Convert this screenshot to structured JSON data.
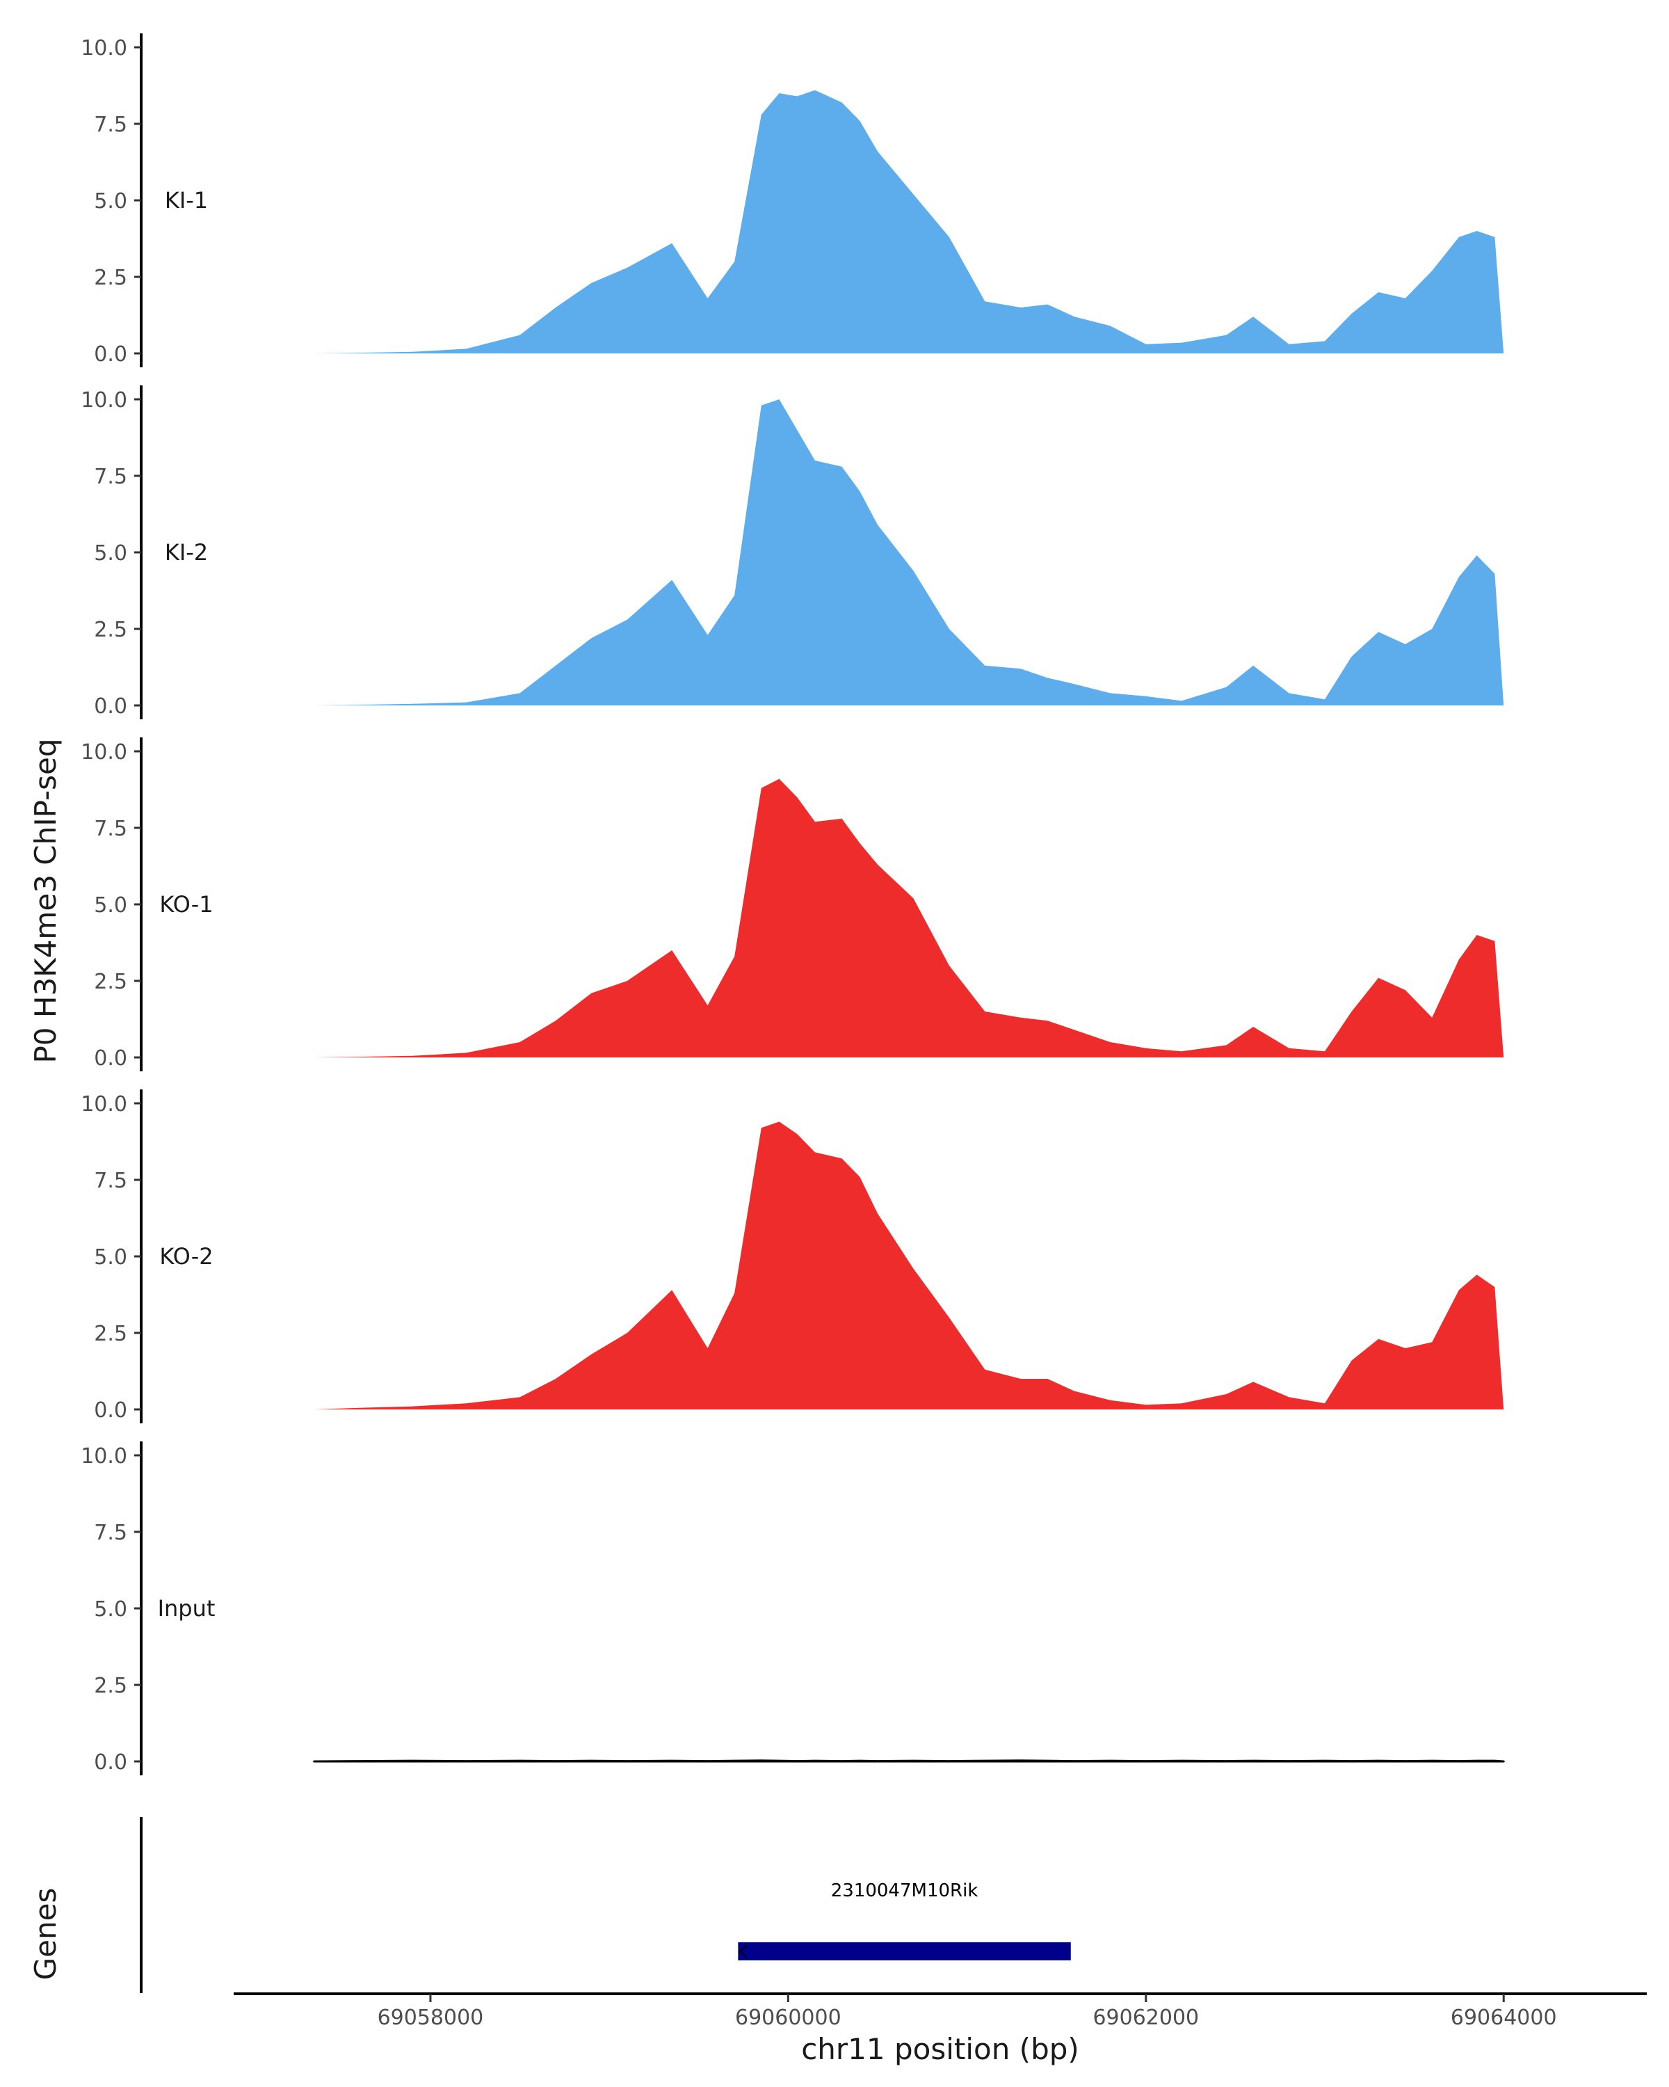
{
  "chart_data": {
    "type": "area",
    "title": "",
    "ylabel": "P0 H3K4me3 ChIP-seq",
    "xlabel": "chr11 position (bp)",
    "genes_label": "Genes",
    "xlim": [
      69056900,
      69064800
    ],
    "ylim": [
      0,
      10
    ],
    "y_ticks": [
      "0.0",
      "2.5",
      "5.0",
      "7.5",
      "10.0"
    ],
    "x_ticks": [
      {
        "value": 69058000,
        "label": "69058000"
      },
      {
        "value": 69060000,
        "label": "69060000"
      },
      {
        "value": 69062000,
        "label": "69062000"
      },
      {
        "value": 69064000,
        "label": "69064000"
      }
    ],
    "x": [
      69057350,
      69057600,
      69057900,
      69058200,
      69058500,
      69058700,
      69058900,
      69059100,
      69059350,
      69059550,
      69059700,
      69059850,
      69059950,
      69060050,
      69060150,
      69060300,
      69060400,
      69060500,
      69060700,
      69060900,
      69061100,
      69061300,
      69061450,
      69061600,
      69061800,
      69062000,
      69062200,
      69062450,
      69062600,
      69062800,
      69063000,
      69063150,
      69063300,
      69063450,
      69063600,
      69063750,
      69063850,
      69063950,
      69064000
    ],
    "series": [
      {
        "name": "KI-1",
        "color": "#5DADEC",
        "values": [
          0.0,
          0.02,
          0.05,
          0.15,
          0.6,
          1.5,
          2.3,
          2.8,
          3.6,
          1.8,
          3.0,
          7.8,
          8.5,
          8.4,
          8.6,
          8.2,
          7.6,
          6.6,
          5.2,
          3.8,
          1.7,
          1.5,
          1.6,
          1.2,
          0.9,
          0.3,
          0.35,
          0.6,
          1.2,
          0.3,
          0.4,
          1.3,
          2.0,
          1.8,
          2.7,
          3.8,
          4.0,
          3.8,
          0.0
        ]
      },
      {
        "name": "KI-2",
        "color": "#5DADEC",
        "values": [
          0.0,
          0.02,
          0.05,
          0.1,
          0.4,
          1.3,
          2.2,
          2.8,
          4.1,
          2.3,
          3.6,
          9.8,
          10.0,
          9.0,
          8.0,
          7.8,
          7.0,
          5.9,
          4.4,
          2.5,
          1.3,
          1.2,
          0.9,
          0.7,
          0.4,
          0.3,
          0.15,
          0.6,
          1.3,
          0.4,
          0.2,
          1.6,
          2.4,
          2.0,
          2.5,
          4.2,
          4.9,
          4.3,
          0.0
        ]
      },
      {
        "name": "KO-1",
        "color": "#EE2C2C",
        "values": [
          0.0,
          0.02,
          0.05,
          0.15,
          0.5,
          1.2,
          2.1,
          2.5,
          3.5,
          1.7,
          3.3,
          8.8,
          9.1,
          8.5,
          7.7,
          7.8,
          7.0,
          6.3,
          5.2,
          3.0,
          1.5,
          1.3,
          1.2,
          0.9,
          0.5,
          0.3,
          0.2,
          0.4,
          1.0,
          0.3,
          0.2,
          1.5,
          2.6,
          2.2,
          1.3,
          3.2,
          4.0,
          3.8,
          0.0
        ]
      },
      {
        "name": "KO-2",
        "color": "#EE2C2C",
        "values": [
          0.0,
          0.05,
          0.1,
          0.2,
          0.4,
          1.0,
          1.8,
          2.5,
          3.9,
          2.0,
          3.8,
          9.2,
          9.4,
          9.0,
          8.4,
          8.2,
          7.6,
          6.4,
          4.6,
          3.0,
          1.3,
          1.0,
          1.0,
          0.6,
          0.3,
          0.15,
          0.2,
          0.5,
          0.9,
          0.4,
          0.2,
          1.6,
          2.3,
          2.0,
          2.2,
          3.9,
          4.4,
          4.0,
          0.0
        ]
      },
      {
        "name": "Input",
        "color": "#000000",
        "values": [
          0.0,
          0.01,
          0.02,
          0.01,
          0.02,
          0.01,
          0.02,
          0.01,
          0.02,
          0.01,
          0.02,
          0.03,
          0.02,
          0.01,
          0.02,
          0.01,
          0.02,
          0.01,
          0.02,
          0.01,
          0.02,
          0.03,
          0.02,
          0.01,
          0.02,
          0.01,
          0.02,
          0.01,
          0.02,
          0.01,
          0.02,
          0.01,
          0.02,
          0.01,
          0.02,
          0.01,
          0.02,
          0.02,
          0.0
        ]
      }
    ],
    "genes": [
      {
        "name": "2310047M10Rik",
        "start": 69059720,
        "end": 69061580,
        "strand": "-",
        "color": "#00008B"
      }
    ]
  }
}
